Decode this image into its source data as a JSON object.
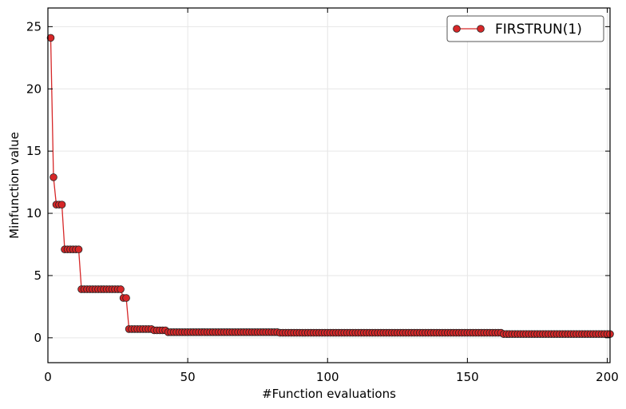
{
  "chart_data": {
    "type": "line",
    "title": "",
    "xlabel": "#Function evaluations",
    "ylabel": "Minfunction value",
    "xlim": [
      0,
      201
    ],
    "ylim": [
      -2,
      26.5
    ],
    "xticks": [
      0,
      50,
      100,
      150,
      200
    ],
    "yticks": [
      0,
      5,
      10,
      15,
      20,
      25
    ],
    "grid": true,
    "legend_position": "top-right",
    "colors": {
      "line": "#d62728",
      "marker_fill": "#d62728",
      "marker_edge": "#222222"
    },
    "series": [
      {
        "name": "FIRSTRUN(1)",
        "marker": "circle",
        "steps": [
          {
            "from": 1,
            "to": 1,
            "y": 24.1
          },
          {
            "from": 2,
            "to": 2,
            "y": 12.9
          },
          {
            "from": 3,
            "to": 5,
            "y": 10.7
          },
          {
            "from": 6,
            "to": 11,
            "y": 7.1
          },
          {
            "from": 12,
            "to": 26,
            "y": 3.9
          },
          {
            "from": 27,
            "to": 28,
            "y": 3.2
          },
          {
            "from": 29,
            "to": 37,
            "y": 0.7
          },
          {
            "from": 38,
            "to": 42,
            "y": 0.6
          },
          {
            "from": 43,
            "to": 82,
            "y": 0.45
          },
          {
            "from": 83,
            "to": 162,
            "y": 0.4
          },
          {
            "from": 163,
            "to": 201,
            "y": 0.3
          }
        ]
      }
    ]
  }
}
